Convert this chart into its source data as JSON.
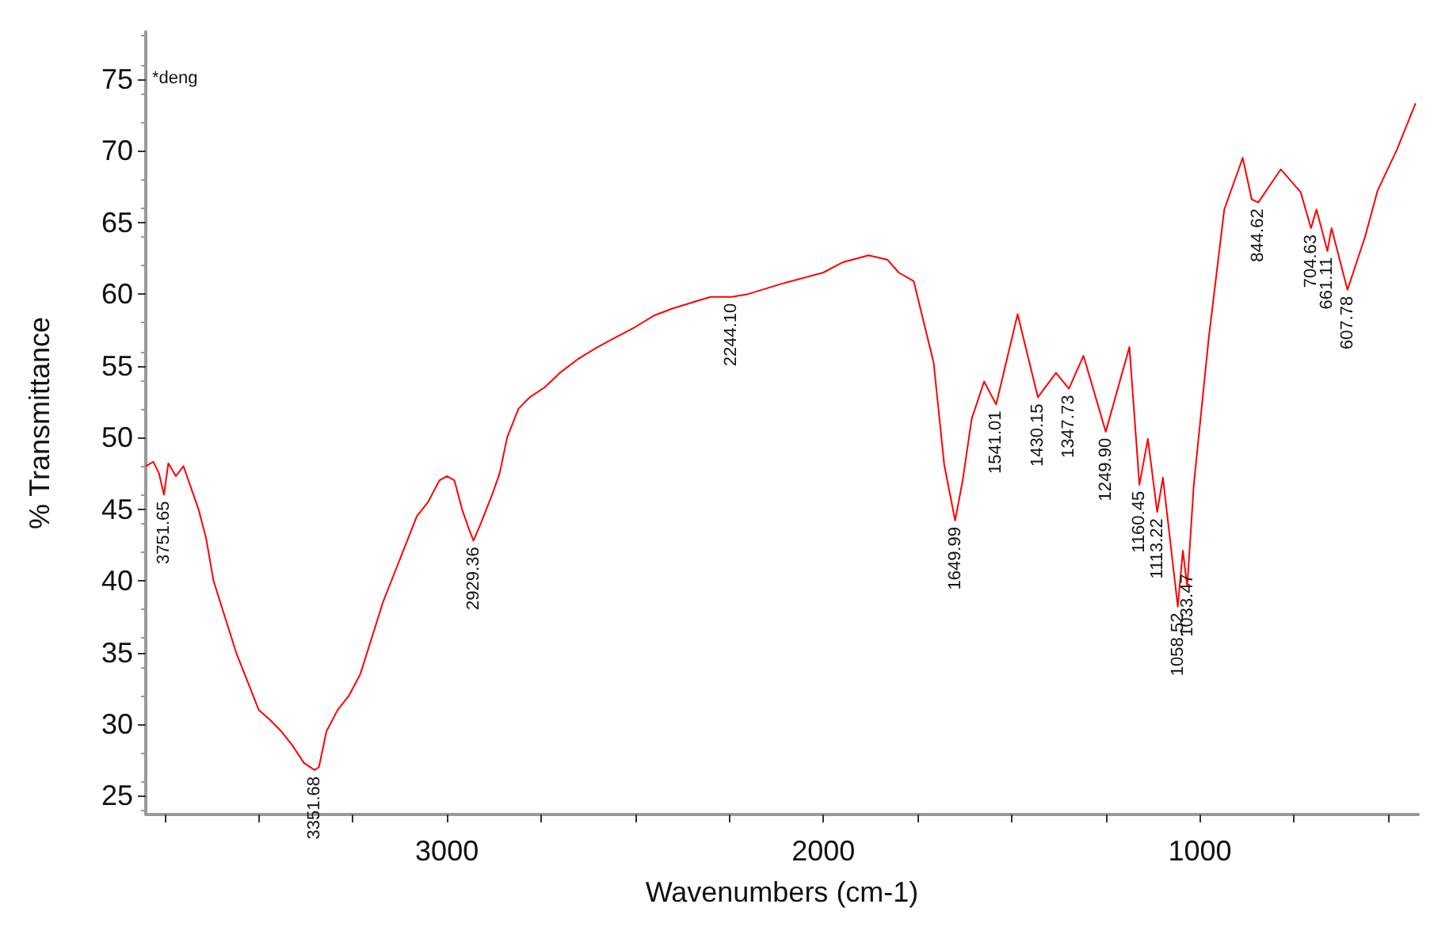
{
  "chart_data": {
    "type": "line",
    "xlabel": "Wavenumbers (cm-1)",
    "ylabel": "% Transmittance",
    "xlim": [
      3800,
      420
    ],
    "ylim": [
      23.7,
      78.3
    ],
    "xticks": [
      {
        "value": 3750,
        "label": null
      },
      {
        "value": 3500,
        "label": null
      },
      {
        "value": 3250,
        "label": null
      },
      3000,
      {
        "value": 2750,
        "label": null
      },
      {
        "value": 2500,
        "label": null
      },
      {
        "value": 2250,
        "label": null
      },
      2000,
      {
        "value": 1750,
        "label": null
      },
      {
        "value": 1500,
        "label": null
      },
      {
        "value": 1250,
        "label": null
      },
      1000,
      {
        "value": 750,
        "label": null
      },
      {
        "value": 500,
        "label": null
      }
    ],
    "yticks": [
      25,
      30,
      35,
      40,
      45,
      50,
      55,
      60,
      65,
      70,
      75
    ],
    "grid": false,
    "marker": "none",
    "line_style": "solid",
    "series": [
      {
        "color": "#ff0000",
        "x": [
          3800,
          3780,
          3765,
          3751.65,
          3740,
          3720,
          3700,
          3680,
          3660,
          3640,
          3620,
          3590,
          3560,
          3530,
          3500,
          3470,
          3440,
          3410,
          3380,
          3351.68,
          3340,
          3320,
          3290,
          3260,
          3230,
          3200,
          3170,
          3140,
          3110,
          3080,
          3050,
          3020,
          3000,
          2980,
          2960,
          2940,
          2929.36,
          2910,
          2880,
          2860,
          2840,
          2810,
          2780,
          2740,
          2700,
          2650,
          2600,
          2550,
          2500,
          2450,
          2400,
          2300,
          2244.1,
          2200,
          2100,
          2000,
          1950,
          1880,
          1830,
          1800,
          1760,
          1707,
          1679,
          1649.99,
          1630,
          1606,
          1573,
          1541.01,
          1484,
          1430.15,
          1382,
          1347.73,
          1309,
          1249.9,
          1187,
          1160.45,
          1138,
          1113.22,
          1098,
          1058.52,
          1045,
          1033.47,
          1016,
          976,
          935,
          886,
          862,
          844.62,
          785,
          732,
          704.63,
          690,
          661.11,
          650,
          607.78,
          561,
          528,
          476,
          427
        ],
        "values": [
          48.0,
          48.3,
          47.5,
          46.0,
          48.2,
          47.3,
          48.0,
          46.5,
          45.0,
          43.0,
          40.0,
          37.5,
          35.0,
          33.0,
          31.0,
          30.3,
          29.5,
          28.5,
          27.3,
          26.8,
          27.0,
          29.5,
          31.0,
          32.0,
          33.5,
          36.0,
          38.5,
          40.5,
          42.5,
          44.5,
          45.5,
          47.0,
          47.3,
          47.0,
          45.0,
          43.5,
          42.8,
          44.0,
          46.0,
          47.5,
          50.0,
          52.0,
          52.8,
          53.5,
          54.5,
          55.5,
          56.3,
          57.0,
          57.7,
          58.5,
          59.0,
          59.8,
          59.8,
          60.0,
          60.8,
          61.5,
          62.2,
          62.7,
          62.4,
          61.5,
          60.9,
          55.2,
          48.1,
          44.2,
          47.0,
          51.3,
          53.9,
          52.3,
          58.6,
          52.8,
          54.5,
          53.4,
          55.7,
          50.4,
          56.3,
          46.7,
          49.9,
          44.8,
          47.2,
          38.2,
          42.1,
          39.6,
          46.7,
          57.0,
          65.9,
          69.5,
          66.6,
          66.4,
          68.7,
          67.1,
          64.6,
          65.9,
          63.0,
          64.6,
          60.3,
          64.0,
          67.2,
          70.1,
          73.3
        ]
      }
    ],
    "annotations": [
      "*deng",
      {
        "text": "3751.65",
        "x": 3751.65,
        "y": 46.0
      },
      {
        "text": "3351.68",
        "x": 3351.68,
        "y": 26.8
      },
      {
        "text": "2929.36",
        "x": 2929.36,
        "y": 42.8
      },
      {
        "text": "2244.10",
        "x": 2244.1,
        "y": 59.8
      },
      {
        "text": "1649.99",
        "x": 1649.99,
        "y": 44.2
      },
      {
        "text": "1541.01",
        "x": 1541.01,
        "y": 52.3
      },
      {
        "text": "1430.15",
        "x": 1430.15,
        "y": 52.8
      },
      {
        "text": "1347.73",
        "x": 1347.73,
        "y": 53.4
      },
      {
        "text": "1249.90",
        "x": 1249.9,
        "y": 50.4
      },
      {
        "text": "1160.45",
        "x": 1160.45,
        "y": 46.7
      },
      {
        "text": "1113.22",
        "x": 1113.22,
        "y": 44.8
      },
      {
        "text": "1058.52",
        "x": 1058.52,
        "y": 38.2
      },
      {
        "text": "1033.47",
        "x": 1033.47,
        "y": 39.6
      },
      {
        "text": "844.62",
        "x": 844.62,
        "y": 66.4
      },
      {
        "text": "704.63",
        "x": 704.63,
        "y": 64.6
      },
      {
        "text": "661.11",
        "x": 661.11,
        "y": 63.0
      },
      {
        "text": "607.78",
        "x": 607.78,
        "y": 60.3
      }
    ]
  }
}
